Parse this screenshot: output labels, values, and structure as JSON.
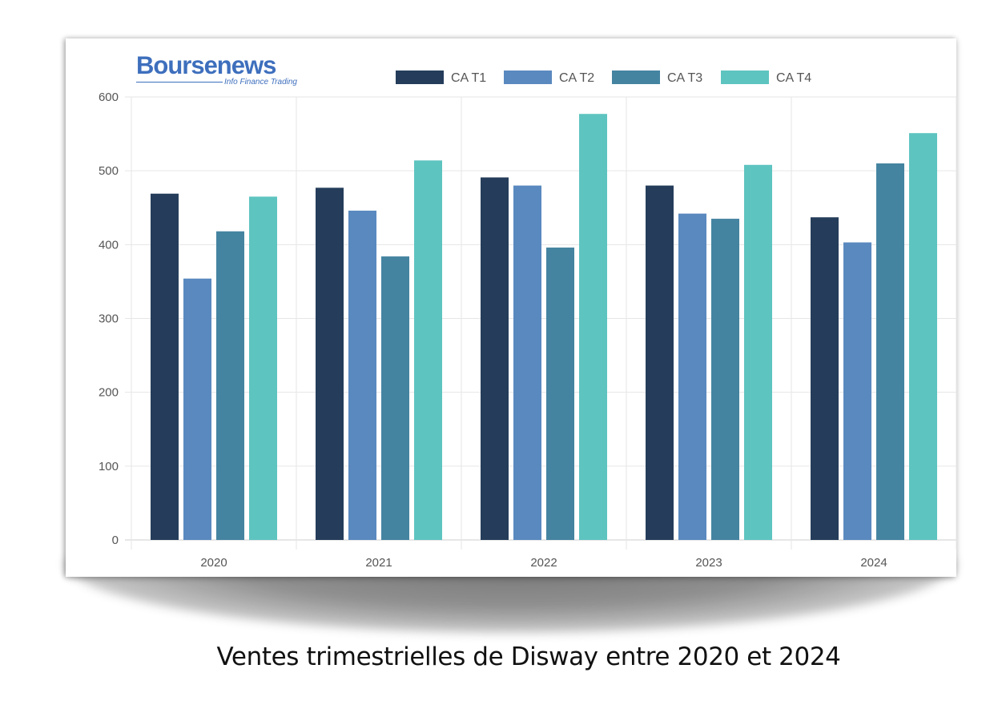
{
  "logo": {
    "name": "Boursenews",
    "tagline": "Info Finance Trading"
  },
  "caption": "Ventes trimestrielles de Disway entre 2020 et 2024",
  "colors": {
    "CA T1": "#253d5b",
    "CA T2": "#5a89bf",
    "CA T3": "#4484a1",
    "CA T4": "#5ec4c0"
  },
  "chart_data": {
    "type": "bar",
    "title": "",
    "xlabel": "",
    "ylabel": "",
    "categories": [
      "2020",
      "2021",
      "2022",
      "2023",
      "2024"
    ],
    "series": [
      {
        "name": "CA T1",
        "values": [
          469,
          477,
          491,
          480,
          437
        ]
      },
      {
        "name": "CA T2",
        "values": [
          354,
          446,
          480,
          442,
          403
        ]
      },
      {
        "name": "CA T3",
        "values": [
          418,
          384,
          396,
          435,
          510
        ]
      },
      {
        "name": "CA T4",
        "values": [
          465,
          514,
          577,
          508,
          551
        ]
      }
    ],
    "ylim": [
      0,
      600
    ],
    "yticks": [
      0,
      100,
      200,
      300,
      400,
      500,
      600
    ],
    "grid": true,
    "legend": "top"
  }
}
